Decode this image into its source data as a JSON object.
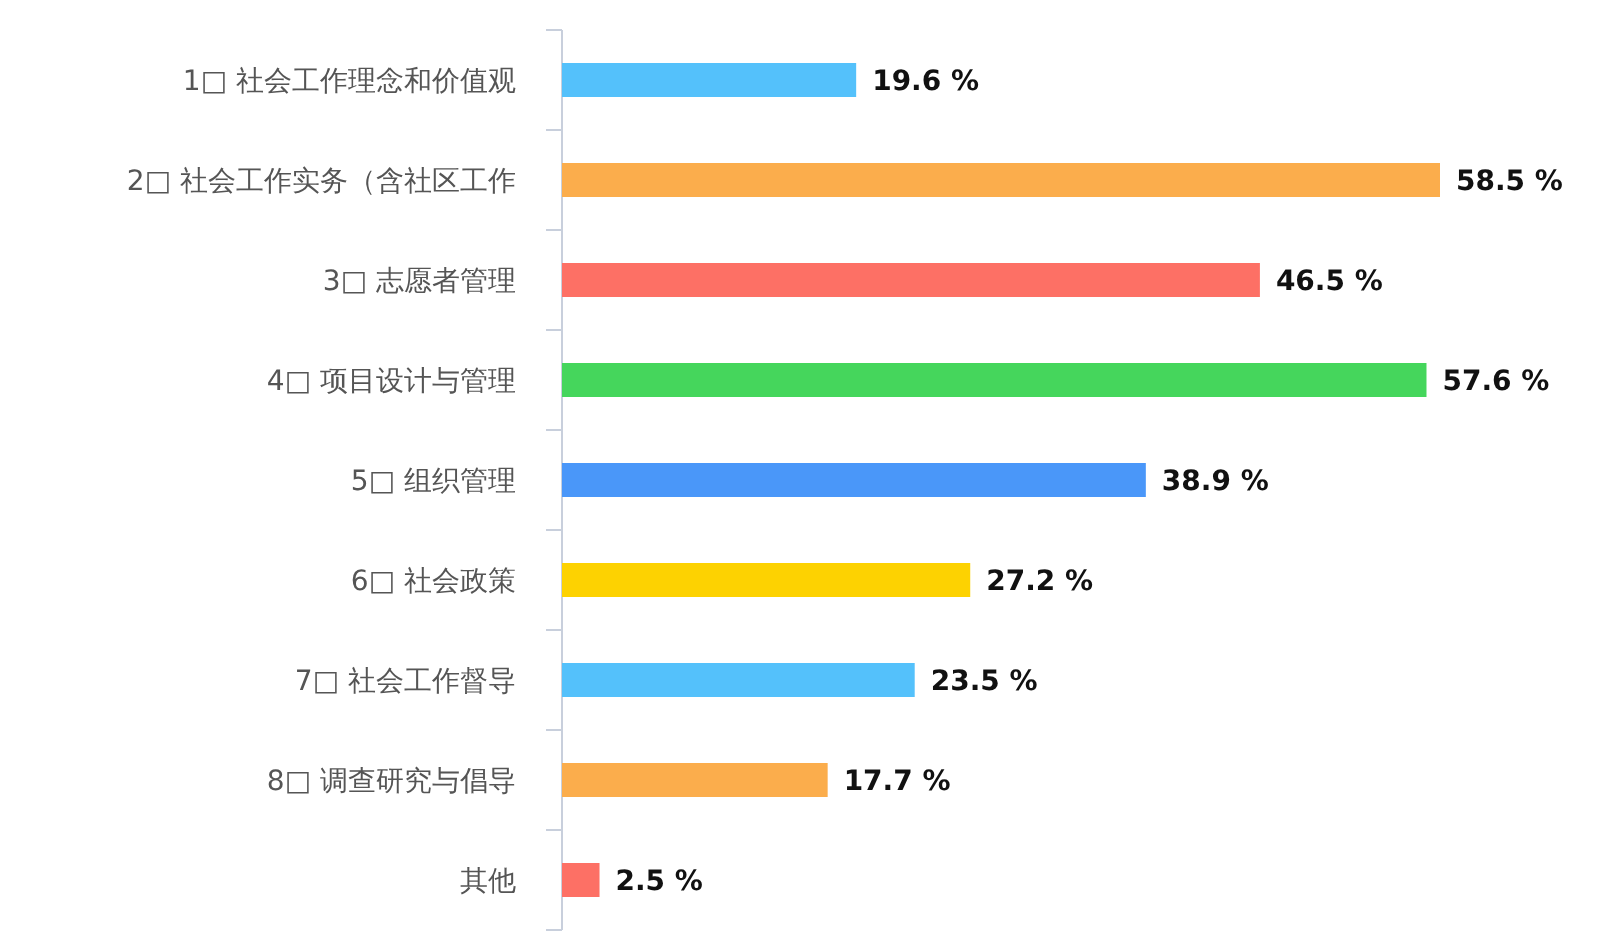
{
  "chart_data": {
    "type": "bar",
    "orientation": "horizontal",
    "categories": [
      "1□ 社会工作理念和价值观",
      "2□ 社会工作实务（含社区工作",
      "3□ 志愿者管理",
      "4□ 项目设计与管理",
      "5□ 组织管理",
      "6□ 社会政策",
      "7□ 社会工作督导",
      "8□ 调查研究与倡导",
      "其他"
    ],
    "values": [
      19.6,
      58.5,
      46.5,
      57.6,
      38.9,
      27.2,
      23.5,
      17.7,
      2.5
    ],
    "value_labels": [
      "19.6 %",
      "58.5 %",
      "46.5 %",
      "57.6 %",
      "38.9 %",
      "27.2 %",
      "23.5 %",
      "17.7 %",
      "2.5 %"
    ],
    "colors": [
      "#54c1fb",
      "#fbad4c",
      "#fd7065",
      "#45d65c",
      "#4a97f9",
      "#fdd201",
      "#54c1fb",
      "#fbad4c",
      "#fd7065"
    ]
  }
}
